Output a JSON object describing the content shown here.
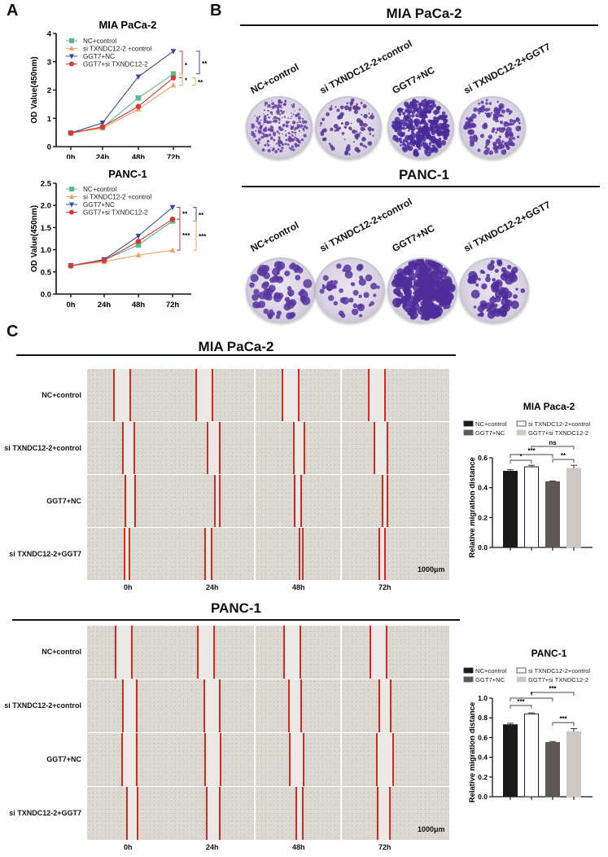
{
  "panels": {
    "A": {
      "letter": "A"
    },
    "B": {
      "letter": "B",
      "sections": [
        {
          "title": "MIA PaCa-2",
          "dishes": [
            "NC+control",
            "si TXNDC12-2+control",
            "GGT7+NC",
            "si TXNDC12-2+GGT7"
          ]
        },
        {
          "title": "PANC-1",
          "dishes": [
            "NC+control",
            "si TXNDC12-2+control",
            "GGT7+NC",
            "si TXNDC12-2+GGT7"
          ]
        }
      ]
    },
    "C": {
      "letter": "C",
      "sections": [
        {
          "title": "MIA PaCa-2",
          "rows": [
            "NC+control",
            "si TXNDC12-2+control",
            "GGT7+NC",
            "si TXNDC12-2+GGT7"
          ],
          "times": [
            "0h",
            "24h",
            "48h",
            "72h"
          ],
          "scale_bar": "1000μm"
        },
        {
          "title": "PANC-1",
          "rows": [
            "NC+control",
            "si TXNDC12-2+control",
            "GGT7+NC",
            "si TXNDC12-2+GGT7"
          ],
          "times": [
            "0h",
            "24h",
            "48h",
            "72h"
          ],
          "scale_bar": "1000μm"
        }
      ]
    }
  },
  "chart_data": [
    {
      "type": "line",
      "title": "MIA PaCa-2",
      "xlabel": "",
      "ylabel": "OD Value(450nm)",
      "categories": [
        "0h",
        "24h",
        "48h",
        "72h"
      ],
      "ylim": [
        0,
        4
      ],
      "yticks": [
        "0",
        "1",
        "2",
        "3",
        "4"
      ],
      "legend_position": "upper-left",
      "series": [
        {
          "name": "NC+control",
          "marker": "square",
          "color": "#5dbb8a",
          "values": [
            0.48,
            0.68,
            1.72,
            2.57
          ]
        },
        {
          "name": "si TXNDC12-2 +control",
          "marker": "triangle-up",
          "color": "#f0a060",
          "values": [
            0.48,
            0.65,
            1.32,
            2.17
          ]
        },
        {
          "name": "GGT7+NC",
          "marker": "triangle-down",
          "color": "#3a4a9a",
          "values": [
            0.48,
            0.84,
            2.47,
            3.37
          ]
        },
        {
          "name": "GGT7+si TXNDC12-2",
          "marker": "circle",
          "color": "#d83a3a",
          "values": [
            0.48,
            0.7,
            1.42,
            2.43
          ]
        }
      ],
      "annotations": [
        "*",
        "**",
        "*",
        "**"
      ]
    },
    {
      "type": "line",
      "title": "PANC-1",
      "xlabel": "",
      "ylabel": "OD Value(450nm)",
      "categories": [
        "0h",
        "24h",
        "48h",
        "72h"
      ],
      "ylim": [
        0,
        2.5
      ],
      "yticks": [
        "0.0",
        "0.5",
        "1.0",
        "1.5",
        "2.0",
        "2.5"
      ],
      "legend_position": "upper-left",
      "series": [
        {
          "name": "NC+control",
          "marker": "square",
          "color": "#5dbb8a",
          "values": [
            0.64,
            0.77,
            1.11,
            1.65
          ]
        },
        {
          "name": "si TXNDC12-2 +control",
          "marker": "triangle-up",
          "color": "#f0a060",
          "values": [
            0.64,
            0.73,
            0.88,
            0.99
          ]
        },
        {
          "name": "GGT7+NC",
          "marker": "triangle-down",
          "color": "#3a4a9a",
          "values": [
            0.64,
            0.78,
            1.31,
            1.96
          ]
        },
        {
          "name": "GGT7+si TXNDC12-2",
          "marker": "circle",
          "color": "#d83a3a",
          "values": [
            0.64,
            0.76,
            1.19,
            1.69
          ]
        }
      ],
      "annotations": [
        "**",
        "**",
        "***",
        "***"
      ]
    },
    {
      "type": "bar",
      "title": "MIA Paca-2",
      "xlabel": "",
      "ylabel": "Relative migration distance",
      "categories": [
        "NC+control",
        "si TXNDC12-2+control",
        "GGT7+NC",
        "GGT7+si TXNDC12-2"
      ],
      "values": [
        0.51,
        0.54,
        0.44,
        0.53
      ],
      "errors": [
        0.01,
        0.01,
        0.005,
        0.02
      ],
      "colors": [
        "#1a1a18",
        "#ffffff",
        "#5e5755",
        "#cfc9c5"
      ],
      "ylim": [
        0,
        0.6
      ],
      "yticks": [
        "0.0",
        "0.2",
        "0.4",
        "0.6"
      ],
      "legend_position": "top",
      "significance": [
        {
          "pair": [
            0,
            1
          ],
          "label": "*"
        },
        {
          "pair": [
            0,
            2
          ],
          "label": "***"
        },
        {
          "pair": [
            2,
            3
          ],
          "label": "**"
        },
        {
          "pair": [
            1,
            3
          ],
          "label": "ns"
        }
      ]
    },
    {
      "type": "bar",
      "title": "PANC-1",
      "xlabel": "",
      "ylabel": "Relative migration distance",
      "categories": [
        "NC+control",
        "si TXNDC12-2+control",
        "GGT7+NC",
        "GGT7+si TXNDC12-2"
      ],
      "values": [
        0.73,
        0.84,
        0.55,
        0.66
      ],
      "errors": [
        0.015,
        0.01,
        0.01,
        0.03
      ],
      "colors": [
        "#1a1a18",
        "#ffffff",
        "#5e5755",
        "#cfc9c5"
      ],
      "ylim": [
        0,
        1.0
      ],
      "yticks": [
        "0.0",
        "0.2",
        "0.4",
        "0.6",
        "0.8",
        "1.0"
      ],
      "legend_position": "top",
      "significance": [
        {
          "pair": [
            0,
            1
          ],
          "label": "***"
        },
        {
          "pair": [
            0,
            2
          ],
          "label": "*"
        },
        {
          "pair": [
            2,
            3
          ],
          "label": "***"
        },
        {
          "pair": [
            1,
            3
          ],
          "label": "***"
        }
      ]
    }
  ]
}
